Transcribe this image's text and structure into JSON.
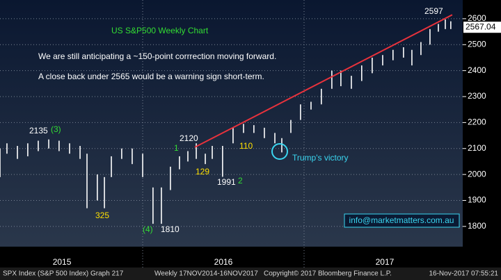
{
  "chart_data": {
    "type": "range",
    "title": "US S&P500 Weekly Chart",
    "comments": [
      "We are still anticipating a ~150-point corrrection moving forward.",
      "A close back under 2565 would be a warning sign short-term."
    ],
    "x": [
      2015.116,
      2015.159,
      2015.224,
      2015.288,
      2015.353,
      2015.418,
      2015.482,
      2015.547,
      2015.612,
      2015.655,
      2015.719,
      2015.763,
      2015.806,
      2015.87,
      2015.935,
      2016.0,
      2016.064,
      2016.116,
      2016.172,
      2016.228,
      2016.28,
      2016.332,
      2016.388,
      2016.431,
      2016.495,
      2016.56,
      2016.625,
      2016.689,
      2016.754,
      2016.819,
      2016.862,
      2016.918,
      2016.978,
      2017.043,
      2017.107,
      2017.172,
      2017.228,
      2017.293,
      2017.357,
      2017.422,
      2017.487,
      2017.551,
      2017.616,
      2017.668,
      2017.724,
      2017.78,
      2017.832,
      2017.875,
      2017.909
    ],
    "high": [
      2100,
      2120,
      2110,
      2120,
      2130,
      2135,
      2130,
      2120,
      2110,
      2080,
      2000,
      1990,
      2070,
      2100,
      2100,
      2080,
      1950,
      1950,
      2030,
      2070,
      2090,
      2120,
      2080,
      2110,
      2110,
      2180,
      2195,
      2190,
      2180,
      2160,
      2140,
      2210,
      2270,
      2280,
      2330,
      2400,
      2400,
      2380,
      2420,
      2450,
      2460,
      2480,
      2490,
      2480,
      2510,
      2560,
      2580,
      2597,
      2590
    ],
    "low": [
      1990,
      2080,
      2060,
      2070,
      2090,
      2100,
      2090,
      2080,
      2060,
      1870,
      1900,
      1870,
      1990,
      2060,
      2040,
      1990,
      1810,
      1810,
      1940,
      2020,
      2050,
      2060,
      2040,
      2060,
      1991,
      2120,
      2160,
      2160,
      2140,
      2120,
      2085,
      2160,
      2210,
      2250,
      2270,
      2330,
      2340,
      2330,
      2360,
      2390,
      2420,
      2440,
      2450,
      2420,
      2460,
      2500,
      2550,
      2560,
      2560
    ],
    "color": "#ffffff",
    "trendline": {
      "x": [
        2016.323,
        2017.918
      ],
      "y": [
        2105,
        2615
      ],
      "color": "#e8323c"
    },
    "last_price": 2567.04,
    "xlim": [
      2015.116,
      2017.983
    ],
    "xticks": [
      {
        "value": 2015.5,
        "label": "2015"
      },
      {
        "value": 2016.5,
        "label": "2016"
      },
      {
        "value": 2017.5,
        "label": "2017"
      }
    ],
    "ylim": [
      1722,
      2672
    ],
    "yticks": [
      1800,
      1900,
      2000,
      2100,
      2200,
      2300,
      2400,
      2500,
      2600
    ],
    "grid": true,
    "annotations": {
      "peak_2135": "2135",
      "wave_3": "(3)",
      "low_325": "325",
      "wave_4": "(4)",
      "low_1810": "1810",
      "level_2120": "2120",
      "wave_1": "1",
      "pts_129": "129",
      "low_1991": "1991",
      "wave_2": "2",
      "pts_110": "110",
      "high_2597": "2597",
      "event": "Trump's victory",
      "contact": "info@marketmatters.com.au"
    },
    "footer": {
      "security": "SPX Index (S&P 500 Index) Graph 217",
      "period": "Weekly 17NOV2014-16NOV2017",
      "copyright": "Copyright© 2017 Bloomberg Finance L.P.",
      "timestamp": "16-Nov-2017 07:55:21"
    }
  }
}
